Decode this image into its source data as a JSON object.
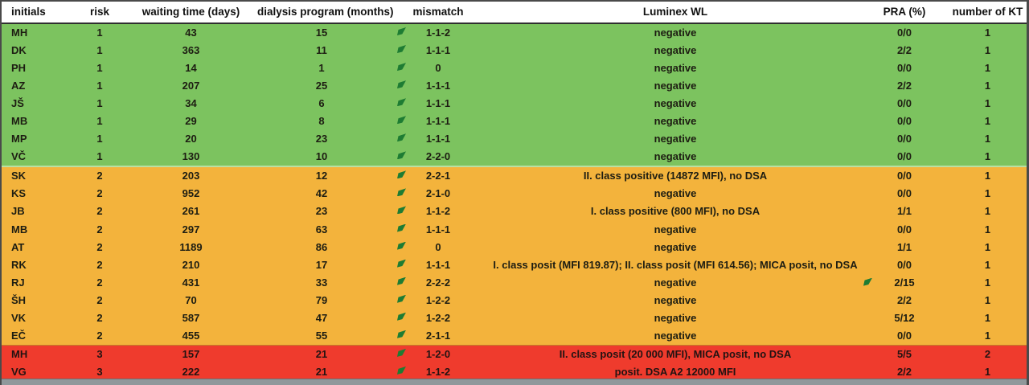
{
  "table": {
    "columns": [
      {
        "label": "initials"
      },
      {
        "label": "risk"
      },
      {
        "label": "waiting time (days)"
      },
      {
        "label": "dialysis program (months)"
      },
      {
        "label": "mismatch"
      },
      {
        "label": "Luminex WL"
      },
      {
        "label": "PRA (%)"
      },
      {
        "label": "number of KT"
      }
    ],
    "rows": [
      {
        "initials": "MH",
        "risk": "1",
        "waiting": "43",
        "dialysis": "15",
        "mismatch": "1-1-2",
        "luminex": "negative",
        "pra": "0/0",
        "kt": "1",
        "group": "green",
        "mismatch_flag": true,
        "pra_flag": false
      },
      {
        "initials": "DK",
        "risk": "1",
        "waiting": "363",
        "dialysis": "11",
        "mismatch": "1-1-1",
        "luminex": "negative",
        "pra": "2/2",
        "kt": "1",
        "group": "green",
        "mismatch_flag": true,
        "pra_flag": false
      },
      {
        "initials": "PH",
        "risk": "1",
        "waiting": "14",
        "dialysis": "1",
        "mismatch": "0",
        "luminex": "negative",
        "pra": "0/0",
        "kt": "1",
        "group": "green",
        "mismatch_flag": true,
        "pra_flag": false
      },
      {
        "initials": "AZ",
        "risk": "1",
        "waiting": "207",
        "dialysis": "25",
        "mismatch": "1-1-1",
        "luminex": "negative",
        "pra": "2/2",
        "kt": "1",
        "group": "green",
        "mismatch_flag": true,
        "pra_flag": false
      },
      {
        "initials": "JŠ",
        "risk": "1",
        "waiting": "34",
        "dialysis": "6",
        "mismatch": "1-1-1",
        "luminex": "negative",
        "pra": "0/0",
        "kt": "1",
        "group": "green",
        "mismatch_flag": true,
        "pra_flag": false
      },
      {
        "initials": "MB",
        "risk": "1",
        "waiting": "29",
        "dialysis": "8",
        "mismatch": "1-1-1",
        "luminex": "negative",
        "pra": "0/0",
        "kt": "1",
        "group": "green",
        "mismatch_flag": true,
        "pra_flag": false
      },
      {
        "initials": "MP",
        "risk": "1",
        "waiting": "20",
        "dialysis": "23",
        "mismatch": "1-1-1",
        "luminex": "negative",
        "pra": "0/0",
        "kt": "1",
        "group": "green",
        "mismatch_flag": true,
        "pra_flag": false
      },
      {
        "initials": "VČ",
        "risk": "1",
        "waiting": "130",
        "dialysis": "10",
        "mismatch": "2-2-0",
        "luminex": "negative",
        "pra": "0/0",
        "kt": "1",
        "group": "green",
        "mismatch_flag": true,
        "pra_flag": false
      },
      {
        "initials": "SK",
        "risk": "2",
        "waiting": "203",
        "dialysis": "12",
        "mismatch": "2-2-1",
        "luminex": "II. class positive (14872 MFI), no DSA",
        "pra": "0/0",
        "kt": "1",
        "group": "orange",
        "mismatch_flag": true,
        "pra_flag": false
      },
      {
        "initials": "KS",
        "risk": "2",
        "waiting": "952",
        "dialysis": "42",
        "mismatch": "2-1-0",
        "luminex": "negative",
        "pra": "0/0",
        "kt": "1",
        "group": "orange",
        "mismatch_flag": true,
        "pra_flag": false
      },
      {
        "initials": "JB",
        "risk": "2",
        "waiting": "261",
        "dialysis": "23",
        "mismatch": "1-1-2",
        "luminex": "I. class positive (800 MFI), no DSA",
        "pra": "1/1",
        "kt": "1",
        "group": "orange",
        "mismatch_flag": true,
        "pra_flag": false
      },
      {
        "initials": "MB",
        "risk": "2",
        "waiting": "297",
        "dialysis": "63",
        "mismatch": "1-1-1",
        "luminex": "negative",
        "pra": "0/0",
        "kt": "1",
        "group": "orange",
        "mismatch_flag": true,
        "pra_flag": false
      },
      {
        "initials": "AT",
        "risk": "2",
        "waiting": "1189",
        "dialysis": "86",
        "mismatch": "0",
        "luminex": "negative",
        "pra": "1/1",
        "kt": "1",
        "group": "orange",
        "mismatch_flag": true,
        "pra_flag": false
      },
      {
        "initials": "RK",
        "risk": "2",
        "waiting": "210",
        "dialysis": "17",
        "mismatch": "1-1-1",
        "luminex": "I. class posit (MFI 819.87); II. class posit (MFI 614.56); MICA posit, no DSA",
        "pra": "0/0",
        "kt": "1",
        "group": "orange",
        "mismatch_flag": true,
        "pra_flag": false
      },
      {
        "initials": "RJ",
        "risk": "2",
        "waiting": "431",
        "dialysis": "33",
        "mismatch": "2-2-2",
        "luminex": "negative",
        "pra": "2/15",
        "kt": "1",
        "group": "orange",
        "mismatch_flag": true,
        "pra_flag": true
      },
      {
        "initials": "ŠH",
        "risk": "2",
        "waiting": "70",
        "dialysis": "79",
        "mismatch": "1-2-2",
        "luminex": "negative",
        "pra": "2/2",
        "kt": "1",
        "group": "orange",
        "mismatch_flag": true,
        "pra_flag": false
      },
      {
        "initials": "VK",
        "risk": "2",
        "waiting": "587",
        "dialysis": "47",
        "mismatch": "1-2-2",
        "luminex": "negative",
        "pra": "5/12",
        "kt": "1",
        "group": "orange",
        "mismatch_flag": true,
        "pra_flag": false
      },
      {
        "initials": "EČ",
        "risk": "2",
        "waiting": "455",
        "dialysis": "55",
        "mismatch": "2-1-1",
        "luminex": "negative",
        "pra": "0/0",
        "kt": "1",
        "group": "orange",
        "mismatch_flag": true,
        "pra_flag": false
      },
      {
        "initials": "MH",
        "risk": "3",
        "waiting": "157",
        "dialysis": "21",
        "mismatch": "1-2-0",
        "luminex": "II. class posit (20 000 MFI), MICA posit, no DSA",
        "pra": "5/5",
        "kt": "2",
        "group": "red",
        "mismatch_flag": true,
        "pra_flag": false
      },
      {
        "initials": "VG",
        "risk": "3",
        "waiting": "222",
        "dialysis": "21",
        "mismatch": "1-1-2",
        "luminex": "posit. DSA A2 12000 MFI",
        "pra": "2/2",
        "kt": "1",
        "group": "red",
        "mismatch_flag": true,
        "pra_flag": false
      }
    ]
  },
  "colors": {
    "risk1_row": "#7cc35f",
    "risk2_row": "#f3b33c",
    "risk3_row": "#ef3b2d",
    "comment_flag": "#1e7c33",
    "header_background": "#ffffff",
    "frame_border": "#4a4a4a"
  }
}
